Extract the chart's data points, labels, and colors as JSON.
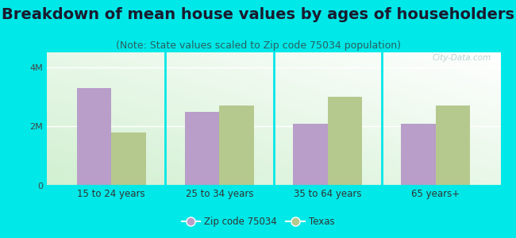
{
  "title": "Breakdown of mean house values by ages of householders",
  "subtitle": "(Note: State values scaled to Zip code 75034 population)",
  "categories": [
    "15 to 24 years",
    "25 to 34 years",
    "35 to 64 years",
    "65 years+"
  ],
  "zip_values": [
    3300000,
    2500000,
    2100000,
    2100000
  ],
  "texas_values": [
    1800000,
    2700000,
    3000000,
    2700000
  ],
  "zip_color": "#b89ec8",
  "texas_color": "#b5c98e",
  "background_color": "#00e8e8",
  "ylim": [
    0,
    4500000
  ],
  "yticks": [
    0,
    2000000,
    4000000
  ],
  "ytick_labels": [
    "0",
    "2M",
    "4M"
  ],
  "legend_zip_label": "Zip code 75034",
  "legend_texas_label": "Texas",
  "title_fontsize": 14,
  "subtitle_fontsize": 9,
  "bar_width": 0.32,
  "watermark": "City-Data.com"
}
